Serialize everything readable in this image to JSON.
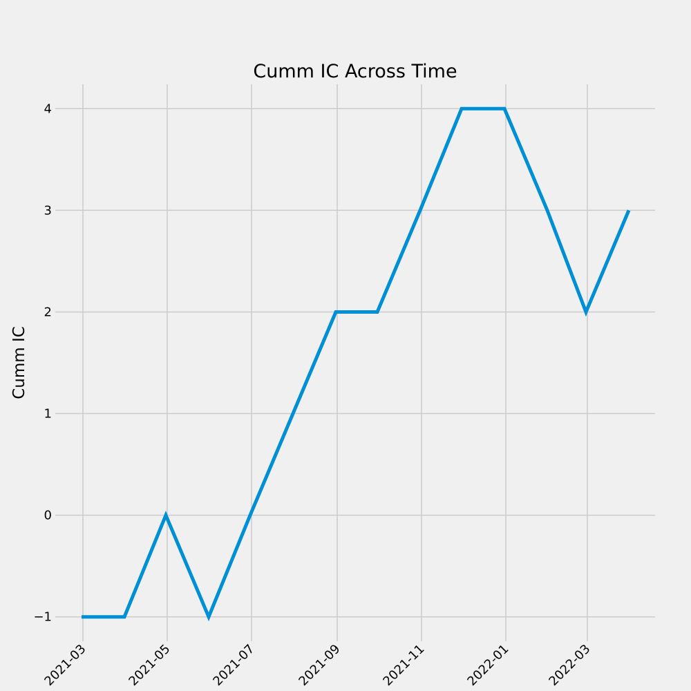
{
  "chart_data": {
    "type": "line",
    "title": "Cumm IC Across Time",
    "xlabel": "",
    "ylabel": "Cumm IC",
    "x": [
      "2021-02-28",
      "2021-03-31",
      "2021-04-30",
      "2021-05-31",
      "2021-06-30",
      "2021-07-31",
      "2021-08-31",
      "2021-09-30",
      "2021-10-31",
      "2021-11-30",
      "2021-12-31",
      "2022-01-31",
      "2022-02-28",
      "2022-03-31"
    ],
    "series": [
      {
        "values": [
          -1,
          -1,
          0,
          -1,
          0,
          1,
          2,
          2,
          3,
          4,
          4,
          3,
          2,
          3
        ],
        "color": "#008fd5"
      }
    ],
    "xticks": [
      "2021-03",
      "2021-05",
      "2021-07",
      "2021-09",
      "2021-11",
      "2022-01",
      "2022-03"
    ],
    "yticks": [
      -1,
      0,
      1,
      2,
      3,
      4
    ],
    "ytick_labels": [
      "−1",
      "0",
      "1",
      "2",
      "3",
      "4"
    ],
    "ylim": [
      -1.24,
      4.24
    ],
    "xlim": [
      "2021-02-09",
      "2022-04-19"
    ],
    "grid": true,
    "legend": "none",
    "background_color": "#f0f0f0",
    "grid_color": "#cbcbcb"
  }
}
